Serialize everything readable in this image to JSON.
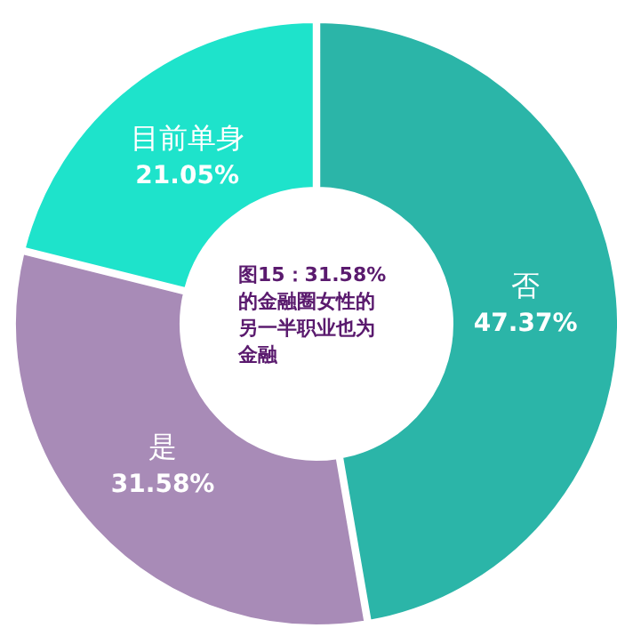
{
  "chart_data": {
    "type": "donut",
    "title": "图15：31.58%的金融圈女性的另一半职业也为金融",
    "categories": [
      "否",
      "是",
      "目前单身"
    ],
    "values": [
      47.37,
      31.58,
      21.05
    ],
    "value_labels": [
      "47.37%",
      "31.58%",
      "21.05%"
    ],
    "colors": [
      "#2bb5a8",
      "#a88bb7",
      "#1ee3cb"
    ]
  }
}
